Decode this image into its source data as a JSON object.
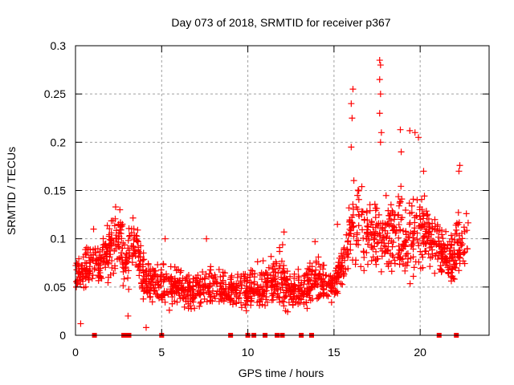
{
  "chart_data": {
    "type": "scatter",
    "title": "Day 073 of 2018, SRMTID for receiver p367",
    "xlabel": "GPS time / hours",
    "ylabel": "SRMTID / TECUs",
    "xlim": [
      0,
      24
    ],
    "ylim": [
      0,
      0.3
    ],
    "xticks": [
      0,
      5,
      10,
      15,
      20
    ],
    "xtick_labels": [
      "0",
      "5",
      "10",
      "15",
      "20"
    ],
    "yticks": [
      0,
      0.05,
      0.1,
      0.15,
      0.2,
      0.25,
      0.3
    ],
    "ytick_labels": [
      "0",
      "0.05",
      "0.1",
      "0.15",
      "0.2",
      "0.25",
      "0.3"
    ],
    "grid": true,
    "marker": "plus",
    "color": "#ff0000",
    "zero_markers_x": [
      1.1,
      2.8,
      2.95,
      3.1,
      5.0,
      9.0,
      10.0,
      10.35,
      11.0,
      11.7,
      12.0,
      13.1,
      13.7,
      21.1,
      22.1
    ],
    "series": [
      {
        "name": "SRMTID",
        "envelope": [
          {
            "x": 0.0,
            "lo": 0.04,
            "hi": 0.085
          },
          {
            "x": 0.5,
            "lo": 0.04,
            "hi": 0.1
          },
          {
            "x": 1.0,
            "lo": 0.035,
            "hi": 0.11
          },
          {
            "x": 1.5,
            "lo": 0.04,
            "hi": 0.11
          },
          {
            "x": 2.0,
            "lo": 0.045,
            "hi": 0.13
          },
          {
            "x": 2.4,
            "lo": 0.06,
            "hi": 0.158
          },
          {
            "x": 2.7,
            "lo": 0.04,
            "hi": 0.14
          },
          {
            "x": 3.0,
            "lo": 0.03,
            "hi": 0.11
          },
          {
            "x": 3.3,
            "lo": 0.05,
            "hi": 0.155
          },
          {
            "x": 3.8,
            "lo": 0.03,
            "hi": 0.1
          },
          {
            "x": 4.5,
            "lo": 0.02,
            "hi": 0.085
          },
          {
            "x": 5.5,
            "lo": 0.02,
            "hi": 0.08
          },
          {
            "x": 6.5,
            "lo": 0.02,
            "hi": 0.07
          },
          {
            "x": 7.5,
            "lo": 0.02,
            "hi": 0.08
          },
          {
            "x": 8.5,
            "lo": 0.02,
            "hi": 0.075
          },
          {
            "x": 9.5,
            "lo": 0.02,
            "hi": 0.07
          },
          {
            "x": 10.5,
            "lo": 0.015,
            "hi": 0.08
          },
          {
            "x": 11.5,
            "lo": 0.02,
            "hi": 0.09
          },
          {
            "x": 12.0,
            "lo": 0.02,
            "hi": 0.1
          },
          {
            "x": 12.5,
            "lo": 0.02,
            "hi": 0.07
          },
          {
            "x": 13.5,
            "lo": 0.02,
            "hi": 0.08
          },
          {
            "x": 14.0,
            "lo": 0.025,
            "hi": 0.09
          },
          {
            "x": 14.8,
            "lo": 0.025,
            "hi": 0.07
          },
          {
            "x": 15.5,
            "lo": 0.04,
            "hi": 0.11
          },
          {
            "x": 16.2,
            "lo": 0.06,
            "hi": 0.18
          },
          {
            "x": 16.8,
            "lo": 0.05,
            "hi": 0.16
          },
          {
            "x": 17.5,
            "lo": 0.06,
            "hi": 0.15
          },
          {
            "x": 18.2,
            "lo": 0.05,
            "hi": 0.16
          },
          {
            "x": 19.0,
            "lo": 0.04,
            "hi": 0.17
          },
          {
            "x": 19.8,
            "lo": 0.05,
            "hi": 0.17
          },
          {
            "x": 20.5,
            "lo": 0.06,
            "hi": 0.15
          },
          {
            "x": 21.0,
            "lo": 0.05,
            "hi": 0.14
          },
          {
            "x": 21.5,
            "lo": 0.04,
            "hi": 0.12
          },
          {
            "x": 22.0,
            "lo": 0.03,
            "hi": 0.13
          },
          {
            "x": 22.7,
            "lo": 0.06,
            "hi": 0.15
          }
        ],
        "outliers": [
          [
            0.3,
            0.012
          ],
          [
            1.05,
            0.11
          ],
          [
            3.05,
            0.02
          ],
          [
            4.1,
            0.008
          ],
          [
            5.2,
            0.1
          ],
          [
            7.6,
            0.1
          ],
          [
            16.1,
            0.255
          ],
          [
            16.0,
            0.24
          ],
          [
            16.05,
            0.225
          ],
          [
            16.0,
            0.195
          ],
          [
            17.65,
            0.285
          ],
          [
            17.7,
            0.28
          ],
          [
            17.65,
            0.265
          ],
          [
            17.7,
            0.25
          ],
          [
            17.65,
            0.23
          ],
          [
            17.75,
            0.21
          ],
          [
            17.7,
            0.2
          ],
          [
            18.85,
            0.213
          ],
          [
            19.4,
            0.212
          ],
          [
            19.7,
            0.21
          ],
          [
            19.9,
            0.205
          ],
          [
            22.3,
            0.176
          ],
          [
            22.25,
            0.17
          ],
          [
            12.1,
            0.107
          ],
          [
            13.9,
            0.097
          ],
          [
            15.2,
            0.115
          ],
          [
            20.2,
            0.17
          ],
          [
            18.9,
            0.19
          ]
        ],
        "point_count": 1600,
        "x_range": [
          0,
          22.8
        ]
      }
    ]
  }
}
